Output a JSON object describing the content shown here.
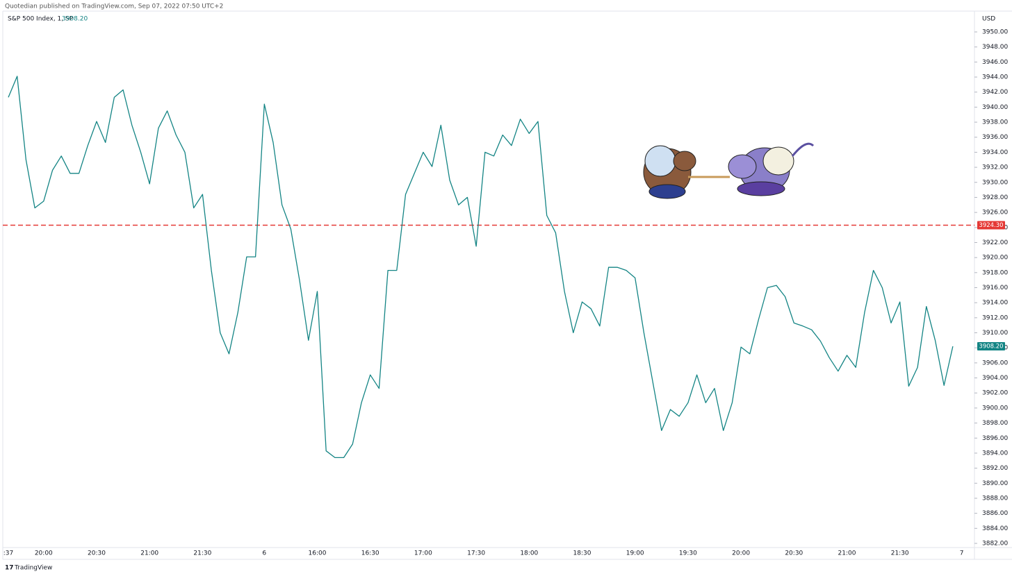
{
  "chart_data": {
    "type": "line",
    "publisher_note": "Quotedian published on TradingView.com, Sep 07, 2022 07:50 UTC+2",
    "title": "S&P 500 Index, 1, SP",
    "currency": "USD",
    "brand": "TradingView",
    "color": "#138484",
    "last_price": {
      "value": 3908.2,
      "label": "3908.20"
    },
    "reference_line": {
      "value": 3924.3,
      "label": "3924.30",
      "color": "#e53935"
    },
    "categories": [
      ":37",
      null,
      null,
      null,
      "20:00",
      null,
      null,
      null,
      null,
      null,
      "20:30",
      null,
      null,
      null,
      null,
      null,
      "21:00",
      null,
      null,
      null,
      null,
      null,
      "21:30",
      null,
      null,
      null,
      null,
      null,
      null,
      "6",
      null,
      null,
      null,
      null,
      null,
      "16:00",
      null,
      null,
      null,
      null,
      null,
      "16:30",
      null,
      null,
      null,
      null,
      null,
      "17:00",
      null,
      null,
      null,
      null,
      null,
      "17:30",
      null,
      null,
      null,
      null,
      null,
      "18:00",
      null,
      null,
      null,
      null,
      null,
      "18:30",
      null,
      null,
      null,
      null,
      null,
      "19:00",
      null,
      null,
      null,
      null,
      null,
      "19:30",
      null,
      null,
      null,
      null,
      null,
      "20:00",
      null,
      null,
      null,
      null,
      null,
      "20:30",
      null,
      null,
      null,
      null,
      null,
      "21:00",
      null,
      null,
      null,
      null,
      null,
      "21:30",
      null,
      null,
      null,
      null,
      null,
      null,
      "7"
    ],
    "values": [
      3941.3,
      3944.1,
      3933.0,
      3926.6,
      3927.5,
      3931.6,
      3933.5,
      3931.2,
      3931.2,
      3934.9,
      3938.1,
      3935.3,
      3941.3,
      3942.3,
      3937.6,
      3934.0,
      3929.8,
      3937.2,
      3939.5,
      3936.3,
      3934.0,
      3926.6,
      3928.4,
      3918.3,
      3910.0,
      3907.2,
      3912.7,
      3920.1,
      3920.1,
      3940.4,
      3935.3,
      3927.0,
      3923.8,
      3916.9,
      3909.0,
      3915.5,
      3894.3,
      3893.4,
      3893.4,
      3895.2,
      3900.7,
      3904.4,
      3902.6,
      3918.3,
      3918.3,
      3928.4,
      3931.2,
      3934.0,
      3932.1,
      3937.6,
      3930.3,
      3927.0,
      3928.0,
      3921.5,
      3934.0,
      3933.5,
      3936.3,
      3934.9,
      3938.4,
      3936.5,
      3938.1,
      3925.6,
      3923.3,
      3915.5,
      3910.0,
      3914.1,
      3913.2,
      3910.9,
      3918.7,
      3918.7,
      3918.3,
      3917.3,
      3910.0,
      3903.5,
      3897.0,
      3899.8,
      3898.9,
      3900.7,
      3904.4,
      3900.7,
      3902.6,
      3897.0,
      3900.7,
      3908.1,
      3907.2,
      3911.8,
      3916.0,
      3916.3,
      3914.8,
      3911.3,
      3910.9,
      3910.4,
      3908.9,
      3906.7,
      3904.9,
      3907.0,
      3905.4,
      3912.7,
      3918.3,
      3916.0,
      3911.3,
      3914.1,
      3902.9,
      3905.4,
      3913.5,
      3909.0,
      3903.0,
      3908.2,
      null
    ],
    "ylim": [
      3882,
      3950
    ],
    "yticks": [
      {
        "value": 3882,
        "label": "3882.00"
      },
      {
        "value": 3884,
        "label": "3884.00"
      },
      {
        "value": 3886,
        "label": "3886.00"
      },
      {
        "value": 3888,
        "label": "3888.00"
      },
      {
        "value": 3890,
        "label": "3890.00"
      },
      {
        "value": 3892,
        "label": "3892.00"
      },
      {
        "value": 3894,
        "label": "3894.00"
      },
      {
        "value": 3896,
        "label": "3896.00"
      },
      {
        "value": 3898,
        "label": "3898.00"
      },
      {
        "value": 3900,
        "label": "3900.00"
      },
      {
        "value": 3902,
        "label": "3902.00"
      },
      {
        "value": 3904,
        "label": "3904.00"
      },
      {
        "value": 3906,
        "label": "3906.00"
      },
      {
        "value": 3908,
        "label": "3908.00"
      },
      {
        "value": 3910,
        "label": "3910.00"
      },
      {
        "value": 3912,
        "label": "3912.00"
      },
      {
        "value": 3914,
        "label": "3914.00"
      },
      {
        "value": 3916,
        "label": "3916.00"
      },
      {
        "value": 3918,
        "label": "3918.00"
      },
      {
        "value": 3920,
        "label": "3920.00"
      },
      {
        "value": 3922,
        "label": "3922.00"
      },
      {
        "value": 3924,
        "label": "3924.00"
      },
      {
        "value": 3926,
        "label": "3926.00"
      },
      {
        "value": 3928,
        "label": "3928.00"
      },
      {
        "value": 3930,
        "label": "3930.00"
      },
      {
        "value": 3932,
        "label": "3932.00"
      },
      {
        "value": 3934,
        "label": "3934.00"
      },
      {
        "value": 3936,
        "label": "3936.00"
      },
      {
        "value": 3938,
        "label": "3938.00"
      },
      {
        "value": 3940,
        "label": "3940.00"
      },
      {
        "value": 3942,
        "label": "3942.00"
      },
      {
        "value": 3944,
        "label": "3944.00"
      },
      {
        "value": 3946,
        "label": "3946.00"
      },
      {
        "value": 3948,
        "label": "3948.00"
      },
      {
        "value": 3950,
        "label": "3950.00"
      }
    ],
    "grid": false
  }
}
